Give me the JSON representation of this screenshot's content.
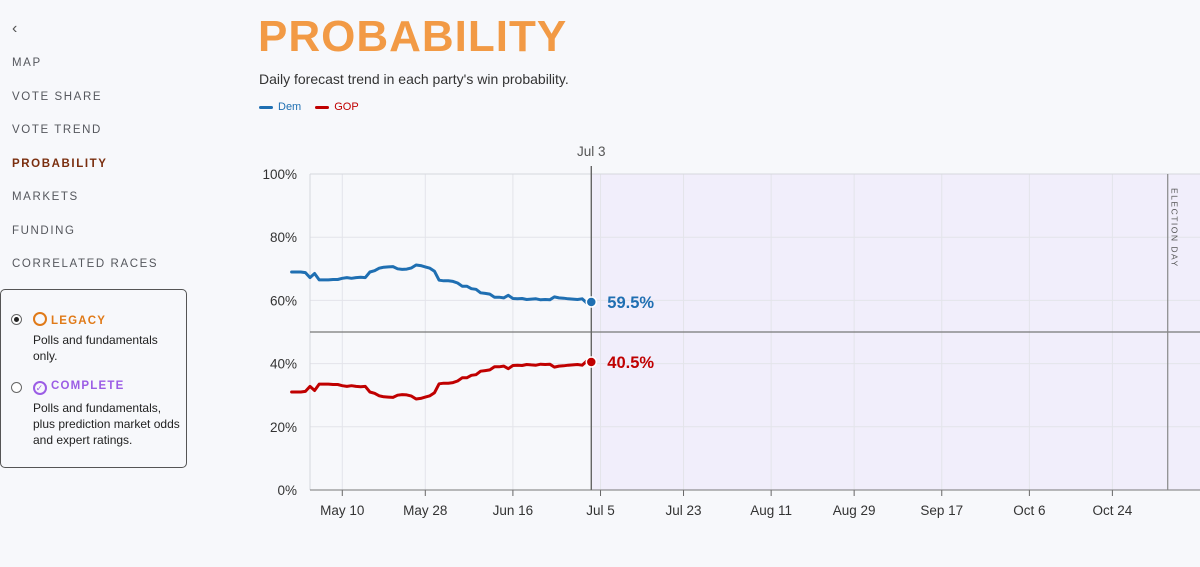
{
  "nav": {
    "back_icon": "arrow-left-icon",
    "items": [
      {
        "label": "MAP",
        "active": false
      },
      {
        "label": "VOTE SHARE",
        "active": false
      },
      {
        "label": "VOTE TREND",
        "active": false
      },
      {
        "label": "PROBABILITY",
        "active": true
      },
      {
        "label": "MARKETS",
        "active": false
      },
      {
        "label": "FUNDING",
        "active": false
      },
      {
        "label": "CORRELATED RACES",
        "active": false
      }
    ]
  },
  "model": {
    "options": [
      {
        "title": "LEGACY",
        "desc": "Polls and fundamentals only.",
        "selected": true,
        "color": "#e07a18",
        "icon": "circle-icon"
      },
      {
        "title": "COMPLETE",
        "desc": "Polls and fundamentals, plus prediction market odds and expert ratings.",
        "selected": false,
        "color": "#9b5de5",
        "icon": "check-circle-icon"
      }
    ]
  },
  "header": {
    "title": "PROBABILITY",
    "subtitle": "Daily forecast trend in each party's win probability."
  },
  "legend": {
    "dem_label": "Dem",
    "gop_label": "GOP"
  },
  "colors": {
    "dem": "#1f6fb2",
    "gop": "#c00000",
    "title": "#f29a45"
  },
  "chart_data": {
    "type": "line",
    "y_ticks": [
      "0%",
      "20%",
      "40%",
      "60%",
      "80%",
      "100%"
    ],
    "ylim": [
      0,
      100
    ],
    "x_tick_labels": [
      "May 10",
      "May 28",
      "Jun 16",
      "Jul 5",
      "Jul 23",
      "Aug 11",
      "Aug 29",
      "Sep 17",
      "Oct 6",
      "Oct 24"
    ],
    "x_tick_days": [
      130,
      148,
      167,
      186,
      204,
      223,
      241,
      260,
      279,
      297
    ],
    "xlim_days": [
      123,
      316
    ],
    "current_date_label": "Jul 3",
    "current_day": 184,
    "election_day_label": "ELECTION DAY",
    "election_day": 309,
    "midline": 50,
    "grid": true,
    "x_dates": [
      "Apr 29",
      "Apr 30",
      "May 1",
      "May 2",
      "May 3",
      "May 4",
      "May 5",
      "May 6",
      "May 7",
      "May 8",
      "May 9",
      "May 10",
      "May 11",
      "May 12",
      "May 13",
      "May 14",
      "May 15",
      "May 16",
      "May 17",
      "May 18",
      "May 19",
      "May 20",
      "May 21",
      "May 22",
      "May 23",
      "May 24",
      "May 25",
      "May 26",
      "May 27",
      "May 28",
      "May 29",
      "May 30",
      "May 31",
      "Jun 1",
      "Jun 2",
      "Jun 3",
      "Jun 4",
      "Jun 5",
      "Jun 6",
      "Jun 7",
      "Jun 8",
      "Jun 9",
      "Jun 10",
      "Jun 11",
      "Jun 12",
      "Jun 13",
      "Jun 14",
      "Jun 15",
      "Jun 16",
      "Jun 17",
      "Jun 18",
      "Jun 19",
      "Jun 20",
      "Jun 21",
      "Jun 22",
      "Jun 23",
      "Jun 24",
      "Jun 25",
      "Jun 26",
      "Jun 27",
      "Jun 28",
      "Jun 29",
      "Jun 30",
      "Jul 1",
      "Jul 2",
      "Jul 3"
    ],
    "series": [
      {
        "name": "Dem",
        "color": "#1f6fb2",
        "end_label": "59.5%",
        "values": [
          69.0,
          69.0,
          69.0,
          68.8,
          67.2,
          68.5,
          66.5,
          66.5,
          66.5,
          66.6,
          66.6,
          67.0,
          67.2,
          67.0,
          67.2,
          67.3,
          67.2,
          69.0,
          69.4,
          70.2,
          70.5,
          70.6,
          70.7,
          70.0,
          69.8,
          69.9,
          70.3,
          71.2,
          71.0,
          70.6,
          70.2,
          69.2,
          66.4,
          66.2,
          66.2,
          66.0,
          65.5,
          64.5,
          64.5,
          63.7,
          63.5,
          62.4,
          62.2,
          62.0,
          61.0,
          61.0,
          60.8,
          61.6,
          60.6,
          60.5,
          60.6,
          60.3,
          60.4,
          60.5,
          60.2,
          60.3,
          60.2,
          61.1,
          60.8,
          60.7,
          60.5,
          60.4,
          60.3,
          60.5,
          59.2,
          59.5
        ]
      },
      {
        "name": "GOP",
        "color": "#c00000",
        "end_label": "40.5%",
        "values": [
          31.0,
          31.0,
          31.0,
          31.2,
          32.8,
          31.5,
          33.5,
          33.5,
          33.5,
          33.4,
          33.4,
          33.0,
          32.8,
          33.0,
          32.8,
          32.7,
          32.8,
          31.0,
          30.6,
          29.8,
          29.5,
          29.4,
          29.3,
          30.0,
          30.2,
          30.1,
          29.7,
          28.8,
          29.0,
          29.4,
          29.8,
          30.8,
          33.6,
          33.8,
          33.8,
          34.0,
          34.5,
          35.5,
          35.5,
          36.3,
          36.5,
          37.6,
          37.8,
          38.0,
          39.0,
          39.0,
          39.2,
          38.4,
          39.4,
          39.5,
          39.4,
          39.7,
          39.6,
          39.5,
          39.8,
          39.7,
          39.8,
          38.9,
          39.2,
          39.3,
          39.5,
          39.6,
          39.7,
          39.5,
          40.8,
          40.5
        ]
      }
    ]
  }
}
